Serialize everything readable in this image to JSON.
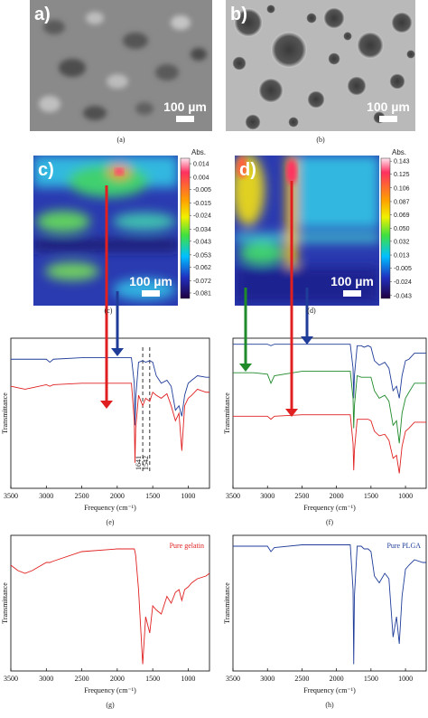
{
  "panels": [
    {
      "label": "a)",
      "scale_bar": "100 µm",
      "caption": "(a)"
    },
    {
      "label": "b)",
      "scale_bar": "100 µm",
      "caption": "(b)"
    },
    {
      "label": "c)",
      "scale_bar": "100 µm",
      "caption": "(c)",
      "colorbar": {
        "title": "Abs.",
        "clim": [
          -0.085,
          0.018
        ],
        "ticks": [
          0.014,
          0.004,
          -0.005,
          -0.015,
          -0.024,
          -0.034,
          -0.043,
          -0.053,
          -0.062,
          -0.072,
          -0.081
        ]
      }
    },
    {
      "label": "d)",
      "scale_bar": "100 µm",
      "caption": "(d)",
      "colorbar": {
        "title": "Abs.",
        "clim": [
          -0.047,
          0.147
        ],
        "ticks": [
          0.143,
          0.125,
          0.106,
          0.087,
          0.069,
          {
            "value": 0.05,
            "label": "0.050"
          },
          0.032,
          0.013,
          -0.005,
          -0.024,
          -0.043
        ]
      }
    }
  ],
  "chart_data": [
    {
      "type": "line",
      "caption": "(e)",
      "xlabel": "Frequency (cm⁻¹)",
      "ylabel": "Transmittance",
      "xlim": [
        3500,
        700
      ],
      "ylim": [
        0,
        100
      ],
      "xticks": [
        3500,
        3000,
        2500,
        2000,
        1500,
        1000
      ],
      "annotations": [
        1641,
        1542
      ],
      "x": [
        3500,
        3400,
        3300,
        3200,
        3000,
        2950,
        2900,
        2500,
        2000,
        1800,
        1760,
        1750,
        1740,
        1700,
        1641,
        1600,
        1542,
        1500,
        1450,
        1380,
        1300,
        1240,
        1180,
        1130,
        1090,
        1050,
        1000,
        950,
        870,
        750,
        700
      ],
      "series": [
        {
          "color": "#1f3c99",
          "values": [
            86,
            86,
            86,
            86,
            86,
            84,
            86,
            87,
            87,
            87,
            70,
            42,
            60,
            84,
            85,
            84,
            85,
            84,
            75,
            70,
            72,
            68,
            52,
            55,
            48,
            62,
            70,
            72,
            75,
            74,
            74
          ]
        },
        {
          "color": "#e02020",
          "values": [
            68,
            67,
            66,
            67,
            69,
            68,
            69,
            70,
            70,
            70,
            45,
            17,
            40,
            62,
            55,
            60,
            58,
            64,
            62,
            60,
            63,
            55,
            45,
            50,
            25,
            55,
            60,
            62,
            66,
            64,
            64
          ]
        }
      ]
    },
    {
      "type": "line",
      "caption": "(f)",
      "xlabel": "Frequency (cm⁻¹)",
      "ylabel": "Transmittance",
      "xlim": [
        3500,
        700
      ],
      "ylim": [
        0,
        100
      ],
      "xticks": [
        3500,
        3000,
        2500,
        2000,
        1500,
        1000
      ],
      "x": [
        3500,
        3400,
        3300,
        3200,
        3000,
        2950,
        2900,
        2500,
        2000,
        1800,
        1760,
        1750,
        1740,
        1700,
        1641,
        1600,
        1542,
        1500,
        1450,
        1380,
        1300,
        1240,
        1180,
        1130,
        1090,
        1050,
        1000,
        950,
        870,
        750,
        700
      ],
      "series": [
        {
          "color": "#1f3c99",
          "values": [
            96,
            96,
            96,
            96,
            96,
            95,
            96,
            96,
            96,
            96,
            80,
            60,
            75,
            95,
            95,
            94,
            95,
            94,
            85,
            82,
            84,
            80,
            65,
            68,
            60,
            75,
            85,
            86,
            90,
            90,
            90
          ]
        },
        {
          "color": "#1f8a2a",
          "values": [
            77,
            77,
            77,
            77,
            76,
            70,
            75,
            78,
            78,
            78,
            60,
            40,
            55,
            75,
            74,
            74,
            74,
            74,
            65,
            60,
            62,
            58,
            42,
            45,
            30,
            50,
            60,
            64,
            70,
            70,
            70
          ]
        },
        {
          "color": "#e02020",
          "values": [
            48,
            48,
            48,
            48,
            48,
            46,
            48,
            49,
            49,
            49,
            30,
            12,
            25,
            46,
            46,
            46,
            46,
            45,
            38,
            35,
            36,
            32,
            20,
            22,
            10,
            28,
            38,
            40,
            44,
            44,
            44
          ]
        }
      ]
    },
    {
      "type": "line",
      "caption": "(g)",
      "xlabel": "Frequency (cm⁻¹)",
      "ylabel": "Transmittance",
      "xlim": [
        3500,
        700
      ],
      "ylim": [
        0,
        100
      ],
      "xticks": [
        3500,
        3000,
        2500,
        2000,
        1500,
        1000
      ],
      "x": [
        3500,
        3400,
        3300,
        3200,
        3000,
        2950,
        2900,
        2500,
        2000,
        1800,
        1760,
        1750,
        1740,
        1700,
        1641,
        1600,
        1542,
        1500,
        1450,
        1380,
        1300,
        1240,
        1180,
        1130,
        1090,
        1050,
        1000,
        950,
        870,
        750,
        700
      ],
      "series": [
        {
          "name": "Pure gelatin",
          "color": "#e02020",
          "values": [
            78,
            74,
            72,
            74,
            80,
            80,
            81,
            88,
            90,
            90,
            90,
            88,
            85,
            60,
            5,
            40,
            28,
            48,
            45,
            42,
            55,
            50,
            58,
            60,
            52,
            60,
            62,
            65,
            68,
            70,
            72
          ]
        }
      ]
    },
    {
      "type": "line",
      "caption": "(h)",
      "xlabel": "Frequency (cm⁻¹)",
      "ylabel": "Transmittance",
      "xlim": [
        3500,
        700
      ],
      "ylim": [
        0,
        100
      ],
      "xticks": [
        3500,
        3000,
        2500,
        2000,
        1500,
        1000
      ],
      "x": [
        3500,
        3400,
        3300,
        3200,
        3000,
        2950,
        2900,
        2500,
        2000,
        1800,
        1760,
        1750,
        1740,
        1700,
        1641,
        1600,
        1542,
        1500,
        1450,
        1380,
        1300,
        1240,
        1180,
        1130,
        1090,
        1050,
        1000,
        950,
        870,
        750,
        700
      ],
      "series": [
        {
          "name": "Pure PLGA",
          "color": "#1f3c99",
          "values": [
            92,
            92,
            92,
            92,
            92,
            88,
            91,
            93,
            93,
            93,
            60,
            5,
            55,
            92,
            92,
            90,
            90,
            88,
            70,
            65,
            72,
            68,
            25,
            40,
            20,
            55,
            75,
            78,
            82,
            80,
            80
          ]
        }
      ]
    }
  ]
}
